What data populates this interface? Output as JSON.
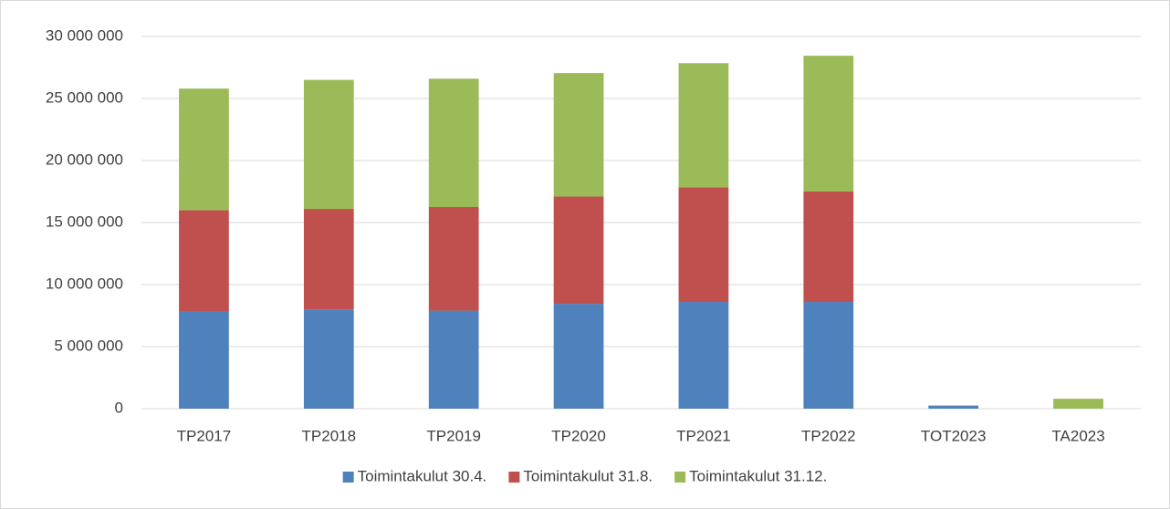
{
  "chart_data": {
    "type": "stacked_bar",
    "categories": [
      "TP2017",
      "TP2018",
      "TP2019",
      "TP2020",
      "TP2021",
      "TP2022",
      "TOT2023",
      "TA2023"
    ],
    "series": [
      {
        "name": "Toimintakulut 30.4.",
        "color": "#4f81bd",
        "values": [
          7800000,
          8000000,
          7900000,
          8450000,
          8600000,
          8600000,
          250000,
          0
        ]
      },
      {
        "name": "Toimintakulut 31.8.",
        "color": "#c0504d",
        "values": [
          8200000,
          8100000,
          8350000,
          8650000,
          9250000,
          8900000,
          0,
          0
        ]
      },
      {
        "name": "Toimintakulut 31.12.",
        "color": "#9bbb59",
        "values": [
          9800000,
          10400000,
          10350000,
          9950000,
          10000000,
          10950000,
          0,
          800000
        ]
      }
    ],
    "ylim": [
      0,
      30000000
    ],
    "yticks": [
      0,
      {
        "value": 5000000,
        "label": "5 000 000"
      },
      {
        "value": 10000000,
        "label": "10 000 000"
      },
      {
        "value": 15000000,
        "label": "15 000 000"
      },
      {
        "value": 20000000,
        "label": "20 000 000"
      },
      {
        "value": 25000000,
        "label": "25 000 000"
      },
      {
        "value": 30000000,
        "label": "30 000 000"
      }
    ],
    "grid": true,
    "legend": "bottom"
  }
}
